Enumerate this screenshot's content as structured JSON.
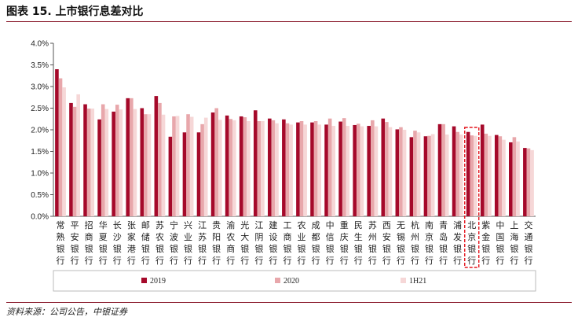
{
  "header": {
    "title": "图表 15. 上市银行息差对比"
  },
  "footer": {
    "source": "资料来源：公司公告，中银证券"
  },
  "chart_data": {
    "type": "bar",
    "title": "",
    "xlabel": "",
    "ylabel": "",
    "ylim": [
      0,
      4
    ],
    "yticks": [
      "0.0%",
      "0.5%",
      "1.0%",
      "1.5%",
      "2.0%",
      "2.5%",
      "3.0%",
      "3.5%",
      "4.0%"
    ],
    "grid": false,
    "legend": "bottom",
    "highlight_category": "北京银行",
    "categories": [
      "常熟银行",
      "平安银行",
      "招商银行",
      "华夏银行",
      "长沙银行",
      "张家港行",
      "邮储银行",
      "苏农银行",
      "宁波银行",
      "兴业银行",
      "江苏银行",
      "贵阳银行",
      "渝农商行",
      "光大银行",
      "江阴银行",
      "建设银行",
      "工商银行",
      "农业银行",
      "成都银行",
      "中信银行",
      "重庆银行",
      "民生银行",
      "苏州银行",
      "西安银行",
      "无锡银行",
      "杭州银行",
      "南京银行",
      "青岛银行",
      "浦发银行",
      "北京银行",
      "紫金银行",
      "中国银行",
      "上海银行",
      "交通银行"
    ],
    "series": [
      {
        "name": "2019",
        "color": "#a5092a",
        "values": [
          3.4,
          2.62,
          2.59,
          2.24,
          2.42,
          2.73,
          2.5,
          2.78,
          1.84,
          1.94,
          1.94,
          2.4,
          2.33,
          2.31,
          2.45,
          2.26,
          2.24,
          2.17,
          2.17,
          2.12,
          2.19,
          2.11,
          2.09,
          2.26,
          2.01,
          1.83,
          1.85,
          2.13,
          2.08,
          1.95,
          2.12,
          1.88,
          1.71,
          1.58
        ]
      },
      {
        "name": "2020",
        "color": "#e8a7ab",
        "values": [
          3.19,
          2.53,
          2.49,
          2.59,
          2.58,
          2.73,
          2.36,
          2.62,
          2.31,
          2.36,
          2.13,
          2.5,
          2.25,
          2.29,
          2.2,
          2.22,
          2.15,
          2.2,
          2.2,
          2.26,
          2.27,
          2.14,
          2.22,
          2.18,
          2.06,
          1.98,
          1.86,
          2.13,
          1.95,
          1.87,
          1.91,
          1.85,
          1.83,
          1.57
        ]
      },
      {
        "name": "1H21",
        "color": "#f6d7d7",
        "values": [
          2.98,
          2.82,
          2.49,
          2.48,
          2.47,
          2.48,
          2.36,
          2.35,
          2.32,
          2.3,
          2.28,
          2.23,
          2.22,
          2.2,
          2.2,
          2.15,
          2.12,
          2.12,
          2.12,
          2.09,
          2.09,
          2.08,
          2.08,
          2.06,
          2.0,
          1.94,
          1.9,
          1.89,
          1.89,
          1.86,
          1.86,
          1.77,
          1.73,
          1.53
        ]
      }
    ]
  }
}
